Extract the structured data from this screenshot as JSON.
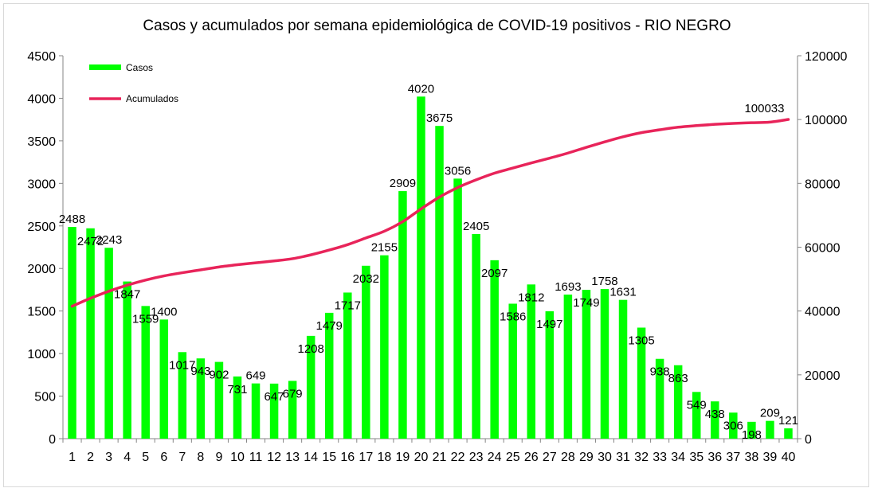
{
  "chart_data": {
    "type": "bar",
    "title": "Casos y acumulados por semana epidemiológica de COVID-19 positivos - RIO NEGRO",
    "categories": [
      "1",
      "2",
      "3",
      "4",
      "5",
      "6",
      "7",
      "8",
      "9",
      "10",
      "11",
      "12",
      "13",
      "14",
      "15",
      "16",
      "17",
      "18",
      "19",
      "20",
      "21",
      "22",
      "23",
      "24",
      "25",
      "26",
      "27",
      "28",
      "29",
      "30",
      "31",
      "32",
      "33",
      "34",
      "35",
      "36",
      "37",
      "38",
      "39",
      "40"
    ],
    "series": [
      {
        "name": "Casos",
        "type": "bar",
        "axis": "left",
        "color": "#00ff00",
        "values": [
          2488,
          2472,
          2243,
          1847,
          1559,
          1400,
          1017,
          943,
          902,
          731,
          649,
          647,
          679,
          1208,
          1479,
          1717,
          2032,
          2155,
          2909,
          4020,
          3675,
          3056,
          2405,
          2097,
          1586,
          1812,
          1497,
          1693,
          1749,
          1758,
          1631,
          1305,
          938,
          863,
          549,
          438,
          306,
          198,
          209,
          121
        ]
      },
      {
        "name": "Acumulados",
        "type": "line",
        "axis": "right",
        "color": "#e8245a",
        "values": [
          41500,
          44000,
          46200,
          48100,
          49700,
          51000,
          52000,
          52900,
          53800,
          54500,
          55100,
          55700,
          56400,
          57600,
          59100,
          60800,
          62900,
          65000,
          68000,
          72000,
          75700,
          78700,
          81100,
          83200,
          84800,
          86400,
          87900,
          89500,
          91300,
          93000,
          94600,
          95900,
          96800,
          97600,
          98100,
          98500,
          98800,
          99000,
          99200,
          100033
        ]
      }
    ],
    "label_positions": [
      "above",
      "below",
      "above",
      "below",
      "below",
      "above",
      "below",
      "below",
      "below",
      "below",
      "above",
      "below",
      "below",
      "below",
      "below",
      "below",
      "below",
      "above",
      "above",
      "above",
      "above",
      "above",
      "above",
      "below",
      "below",
      "below",
      "below",
      "above",
      "below",
      "above",
      "above",
      "below",
      "below",
      "below",
      "below",
      "below",
      "below",
      "below",
      "above",
      "above"
    ],
    "cumulative_label": {
      "index": 39,
      "text": "100033"
    },
    "y_left": {
      "min": 0,
      "max": 4500,
      "ticks": [
        0,
        500,
        1000,
        1500,
        2000,
        2500,
        3000,
        3500,
        4000,
        4500
      ]
    },
    "y_right": {
      "min": 0,
      "max": 120000,
      "ticks": [
        0,
        20000,
        40000,
        60000,
        80000,
        100000,
        120000
      ]
    },
    "xlabel": "",
    "ylabel": "",
    "grid": false,
    "legend": {
      "position": "top-left",
      "items": [
        "Casos",
        "Acumulados"
      ]
    }
  }
}
